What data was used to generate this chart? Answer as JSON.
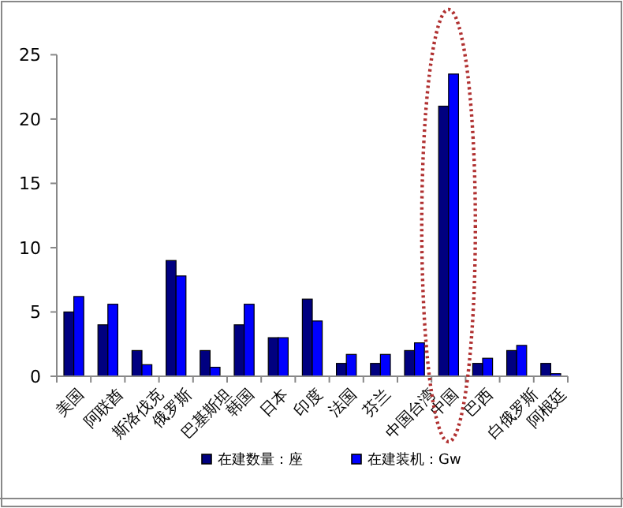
{
  "chart_data": {
    "type": "bar",
    "categories": [
      "美国",
      "阿联酋",
      "斯洛伐克",
      "俄罗斯",
      "巴基斯坦",
      "韩国",
      "日本",
      "印度",
      "法国",
      "芬兰",
      "中国台湾",
      "中国",
      "巴西",
      "白俄罗斯",
      "阿根廷"
    ],
    "series": [
      {
        "name": "在建数量：座",
        "color": "#000080",
        "values": [
          5,
          4,
          2,
          9,
          2,
          4,
          3,
          6,
          1,
          1,
          2,
          21,
          1,
          2,
          1
        ]
      },
      {
        "name": "在建装机：Gw",
        "color": "#0000ff",
        "values": [
          6.2,
          5.6,
          0.9,
          7.8,
          0.7,
          5.6,
          3,
          4.3,
          1.7,
          1.7,
          2.6,
          23.5,
          1.4,
          2.4,
          0.2
        ]
      }
    ],
    "ylim": [
      0,
      25
    ],
    "yticks": [
      0,
      5,
      10,
      15,
      20,
      25
    ],
    "grid": false,
    "legend": "bottom"
  }
}
